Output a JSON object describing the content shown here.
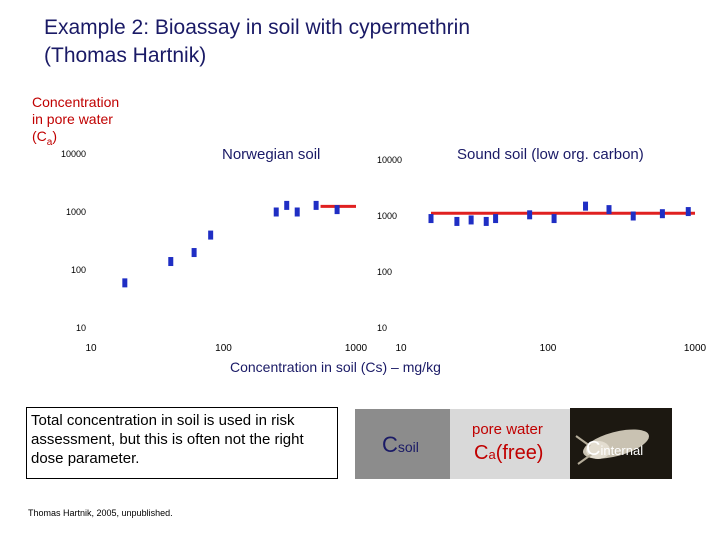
{
  "title_line1": "Example 2: Bioassay in soil with cypermethrin",
  "title_line2": "(Thomas Hartnik)",
  "ylabel": {
    "line1": "Concentration",
    "line2": "in pore water",
    "line3_prefix": "(C",
    "line3_sub": "a",
    "line3_suffix": ")"
  },
  "xlabel": "Concentration in soil (Cs) – mg/kg",
  "note": "Total concentration in soil is used in risk assessment, but this is often not the right dose parameter.",
  "source": "Thomas Hartnik, 2005, unpublished.",
  "diagram": {
    "csoil_main": "C",
    "csoil_sub": "soil",
    "pore_water": "pore water",
    "ca_main": "C",
    "ca_sub": "a",
    "ca_free": "(free)",
    "cint_main": "C",
    "cint_sub": "internal"
  },
  "colors": {
    "points": "#1f2ec4",
    "line": "#e02020",
    "title": "#1a1a66",
    "accent": "#c00000"
  },
  "chart_data": [
    {
      "type": "scatter",
      "title": "Norwegian soil",
      "xscale": "log",
      "yscale": "log",
      "xlim": [
        10,
        1000
      ],
      "ylim": [
        10,
        10000
      ],
      "xticks": [
        "10",
        "100",
        "1000"
      ],
      "yticks": [
        "10",
        "100",
        "1000",
        "10000"
      ],
      "points": [
        [
          18,
          60
        ],
        [
          40,
          140
        ],
        [
          60,
          200
        ],
        [
          80,
          400
        ],
        [
          250,
          1000
        ],
        [
          300,
          1300
        ],
        [
          360,
          1000
        ],
        [
          500,
          1300
        ],
        [
          720,
          1100
        ]
      ],
      "plateau": {
        "x": [
          540,
          1000
        ],
        "y": 1250
      }
    },
    {
      "type": "scatter",
      "title": "Sound soil (low org. carbon)",
      "xscale": "log",
      "yscale": "log",
      "xlim": [
        10,
        1000
      ],
      "ylim": [
        10,
        10000
      ],
      "xticks": [
        "10",
        "100",
        "1000"
      ],
      "yticks": [
        "10",
        "100",
        "1000",
        "10000"
      ],
      "points": [
        [
          16,
          900
        ],
        [
          24,
          800
        ],
        [
          30,
          850
        ],
        [
          38,
          800
        ],
        [
          44,
          900
        ],
        [
          75,
          1050
        ],
        [
          110,
          900
        ],
        [
          180,
          1500
        ],
        [
          260,
          1300
        ],
        [
          380,
          1000
        ],
        [
          600,
          1100
        ],
        [
          900,
          1200
        ]
      ],
      "plateau": {
        "x": [
          16,
          1000
        ],
        "y": 1120
      }
    }
  ]
}
